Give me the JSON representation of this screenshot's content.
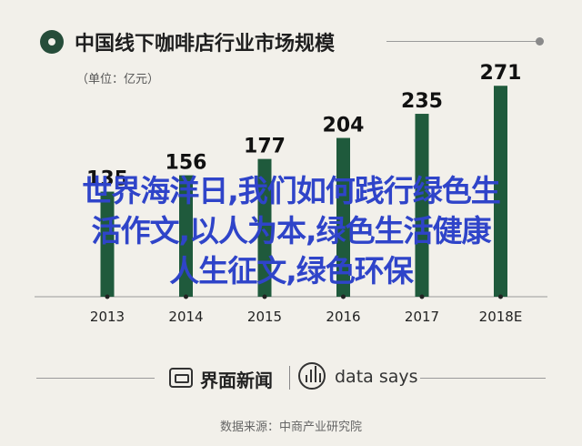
{
  "header": {
    "title": "中国线下咖啡店行业市场规模",
    "unit": "（单位：亿元）"
  },
  "chart_data": {
    "type": "bar",
    "categories": [
      "2013",
      "2014",
      "2015",
      "2016",
      "2017",
      "2018E"
    ],
    "values": [
      135,
      156,
      177,
      204,
      235,
      271
    ],
    "value_labels": [
      "135",
      "156",
      "177",
      "204",
      "235",
      "271"
    ],
    "title": "中国线下咖啡店行业市场规模",
    "xlabel": "",
    "ylabel": "",
    "ylim": [
      0,
      290
    ],
    "grid": false,
    "bar_color": "#1f5a3c"
  },
  "overlay": {
    "line1": "世界海洋日,我们如何践行绿色生",
    "line2": "活作文,以人为本,绿色生活健康",
    "line3": "人生征文,绿色环保",
    "color": "#2f44c9"
  },
  "footer": {
    "brand1": "界面新闻",
    "brand2": "data says",
    "source": "数据来源：中商产业研究院"
  }
}
